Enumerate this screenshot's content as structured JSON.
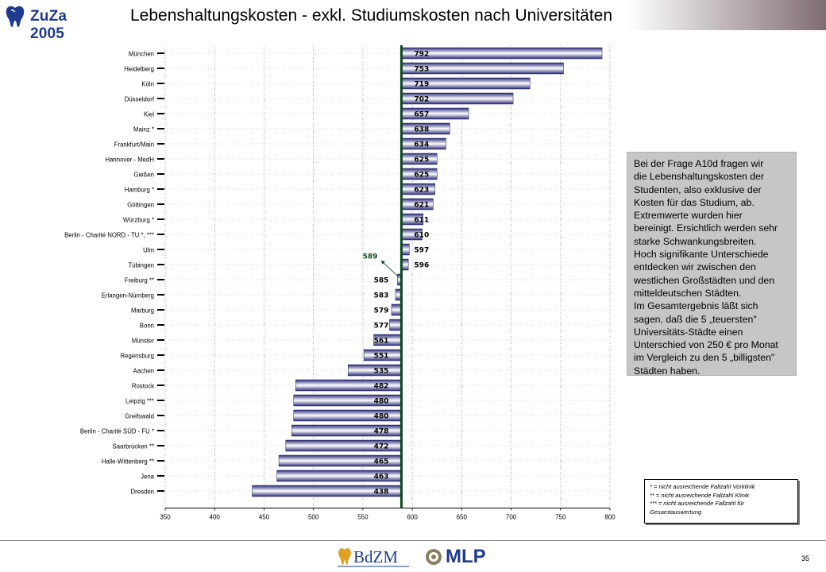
{
  "header": {
    "logo_text": "ZuZa 2005",
    "title": "Lebenshaltungskosten - exkl. Studiumskosten nach Universitäten"
  },
  "colors": {
    "bar_dark": "#2a2a7a",
    "bar_light": "#ffffff",
    "reference_line": "#0b4a1e",
    "note_bg": "#c6c6c6",
    "brand_blue": "#1f3b8f"
  },
  "chart_data": {
    "type": "bar",
    "orientation": "horizontal",
    "categories": [
      "München",
      "Heidelberg",
      "Köln",
      "Düsseldorf",
      "Kiel",
      "Mainz *",
      "Frankfurt/Main",
      "Hannover - MedH",
      "Gießen",
      "Hamburg *",
      "Göttingen",
      "Würzburg *",
      "Berlin - Charité NORD - TU *, ***",
      "Ulm",
      "Tübingen",
      "Freiburg **",
      "Erlangen-Nürnberg",
      "Marburg",
      "Bonn",
      "Münster",
      "Regensburg",
      "Aachen",
      "Rostock",
      "Leipzig ***",
      "Greifswald",
      "Berlin - Charité SÜD - FU *",
      "Saarbrücken **",
      "Halle-Wittenberg **",
      "Jena",
      "Dresden"
    ],
    "values": [
      792,
      753,
      719,
      702,
      657,
      638,
      634,
      625,
      625,
      623,
      621,
      611,
      610,
      597,
      596,
      585,
      583,
      579,
      577,
      561,
      551,
      535,
      482,
      480,
      480,
      478,
      472,
      465,
      463,
      438
    ],
    "xlim": [
      350,
      800
    ],
    "xticks": [
      350,
      400,
      450,
      500,
      550,
      600,
      650,
      700,
      750,
      800
    ],
    "reference": {
      "value": 589,
      "label": "589"
    },
    "grid": "vertical dotted",
    "legend": "none"
  },
  "note": {
    "lines": [
      "Bei der Frage A10d fragen wir",
      "die Lebenshaltungskosten der",
      "Studenten, also exklusive der",
      "Kosten für das Studium, ab.",
      "Extremwerte wurden hier",
      "bereinigt. Ersichtlich werden sehr",
      "starke Schwankungsbreiten.",
      "Hoch signifikante Unterschiede",
      "entdecken wir zwischen den",
      "westlichen Großstädten und den",
      "mitteldeutschen Städten.",
      "Im Gesamtergebnis läßt sich",
      "sagen, daß die 5 „teuersten\"",
      "Universitäts-Städte einen",
      "Unterschied von 250 € pro Monat",
      "im Vergleich zu den 5 „billigsten\"",
      "Städten haben."
    ]
  },
  "footnotes": [
    "*    = nicht ausreichende Fallzahl Vorklinik",
    "**   = nicht ausreichende Fallzahl Klinik",
    "***  = nicht ausreichende Fallzahl für",
    "        Gesamtauswertung"
  ],
  "footer": {
    "bdzm_text": "BdZM",
    "mlp_text": "MLP",
    "page_number": "35"
  }
}
